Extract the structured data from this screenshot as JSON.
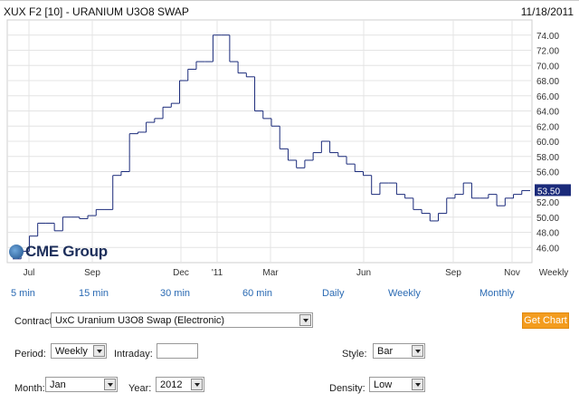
{
  "header": {
    "title": "XUX F2 [10] - URANIUM U3O8 SWAP",
    "date": "11/18/2011"
  },
  "logo": {
    "text": "CME Group"
  },
  "chart_data": {
    "type": "line",
    "style": "step",
    "x_ticks": [
      "Jul",
      "Sep",
      "Dec",
      "'11",
      "Mar",
      "Jun",
      "Sep",
      "Nov",
      "Weekly"
    ],
    "y_ticks": [
      "74.00",
      "72.00",
      "70.00",
      "68.00",
      "66.00",
      "64.00",
      "62.00",
      "60.00",
      "58.00",
      "56.00",
      "54.00",
      "52.00",
      "50.00",
      "48.00",
      "46.00"
    ],
    "ylim": [
      44,
      76
    ],
    "last_price": "53.50",
    "series": [
      {
        "values": [
          44.5,
          45.5,
          47.5,
          49.2,
          49.2,
          48.2,
          50.0,
          50.0,
          49.8,
          50.2,
          51.0,
          51.0,
          55.5,
          56.0,
          61.0,
          61.2,
          62.5,
          63.0,
          64.5,
          65.0,
          68.0,
          69.5,
          70.5,
          70.5,
          74.0,
          74.0,
          70.5,
          69.0,
          68.5,
          64.0,
          63.0,
          62.0,
          59.0,
          57.5,
          56.5,
          57.5,
          58.5,
          60.0,
          58.5,
          58.0,
          57.0,
          56.0,
          55.5,
          53.0,
          54.5,
          54.5,
          53.0,
          52.5,
          51.0,
          50.5,
          49.5,
          50.5,
          52.5,
          53.0,
          54.5,
          52.5,
          52.5,
          53.0,
          51.5,
          52.5,
          53.0,
          53.5
        ]
      }
    ],
    "grid": true,
    "axis_side": "right"
  },
  "period_links": [
    "5 min",
    "15 min",
    "30 min",
    "60 min",
    "Daily",
    "Weekly",
    "Monthly"
  ],
  "form": {
    "contract_label": "Contract:",
    "contract_value": "UxC Uranium U3O8 Swap (Electronic)",
    "get_chart_label": "Get Chart",
    "period_label": "Period:",
    "period_value": "Weekly",
    "intraday_label": "Intraday:",
    "intraday_value": "",
    "style_label": "Style:",
    "style_value": "Bar",
    "month_label": "Month:",
    "month_value": "Jan",
    "year_label": "Year:",
    "year_value": "2012",
    "density_label": "Density:",
    "density_value": "Low"
  },
  "colors": {
    "line": "#1a2a7a",
    "link": "#2a6ab3",
    "button": "#f39c1f",
    "grid": "#e4e4e4"
  }
}
